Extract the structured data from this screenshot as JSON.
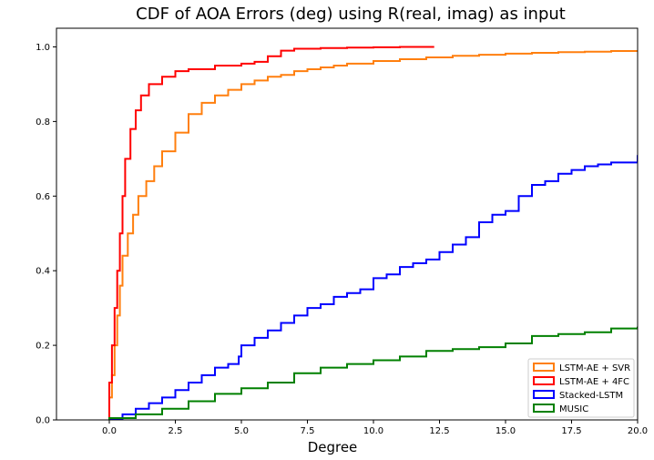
{
  "chart_data": {
    "type": "line",
    "title": "CDF of AOA Errors (deg) using R(real, imag) as input",
    "xlabel": "Degree",
    "ylabel": "",
    "xlim": [
      -2,
      20
    ],
    "ylim": [
      0,
      1.05
    ],
    "x_ticks": [
      0,
      2.5,
      5,
      7.5,
      10,
      12.5,
      15,
      17.5,
      20
    ],
    "x_tick_labels": [
      "0.0",
      "2.5",
      "5.0",
      "7.5",
      "10.0",
      "12.5",
      "15.0",
      "17.5",
      "20.0"
    ],
    "y_ticks": [
      0,
      0.2,
      0.4,
      0.6,
      0.8,
      1.0
    ],
    "y_tick_labels": [
      "0.0",
      "0.2",
      "0.4",
      "0.6",
      "0.8",
      "1.0"
    ],
    "grid": false,
    "legend_position": "lower-right",
    "series": [
      {
        "name": "LSTM-AE + SVR",
        "color": "#ff7f0e",
        "points": [
          [
            0,
            0
          ],
          [
            0,
            0.06
          ],
          [
            0.1,
            0.12
          ],
          [
            0.2,
            0.2
          ],
          [
            0.3,
            0.28
          ],
          [
            0.4,
            0.36
          ],
          [
            0.5,
            0.44
          ],
          [
            0.7,
            0.5
          ],
          [
            0.9,
            0.55
          ],
          [
            1.1,
            0.6
          ],
          [
            1.4,
            0.64
          ],
          [
            1.7,
            0.68
          ],
          [
            2.0,
            0.72
          ],
          [
            2.5,
            0.77
          ],
          [
            3.0,
            0.82
          ],
          [
            3.5,
            0.85
          ],
          [
            4.0,
            0.87
          ],
          [
            4.5,
            0.885
          ],
          [
            5.0,
            0.9
          ],
          [
            5.5,
            0.91
          ],
          [
            6.0,
            0.92
          ],
          [
            6.5,
            0.925
          ],
          [
            7.0,
            0.935
          ],
          [
            7.5,
            0.94
          ],
          [
            8.0,
            0.945
          ],
          [
            8.5,
            0.95
          ],
          [
            9.0,
            0.955
          ],
          [
            10.0,
            0.962
          ],
          [
            11.0,
            0.967
          ],
          [
            12.0,
            0.972
          ],
          [
            13.0,
            0.976
          ],
          [
            14.0,
            0.979
          ],
          [
            15.0,
            0.982
          ],
          [
            16.0,
            0.984
          ],
          [
            17.0,
            0.986
          ],
          [
            18.0,
            0.987
          ],
          [
            19.0,
            0.989
          ],
          [
            20.0,
            0.99
          ]
        ]
      },
      {
        "name": "LSTM-AE + 4FC",
        "color": "#ff0000",
        "points": [
          [
            0,
            0
          ],
          [
            0,
            0.1
          ],
          [
            0.1,
            0.2
          ],
          [
            0.2,
            0.3
          ],
          [
            0.3,
            0.4
          ],
          [
            0.4,
            0.5
          ],
          [
            0.5,
            0.6
          ],
          [
            0.6,
            0.7
          ],
          [
            0.8,
            0.78
          ],
          [
            1.0,
            0.83
          ],
          [
            1.2,
            0.87
          ],
          [
            1.5,
            0.9
          ],
          [
            2.0,
            0.92
          ],
          [
            2.5,
            0.935
          ],
          [
            3.0,
            0.94
          ],
          [
            4.0,
            0.95
          ],
          [
            5.0,
            0.955
          ],
          [
            5.5,
            0.96
          ],
          [
            6.0,
            0.975
          ],
          [
            6.5,
            0.99
          ],
          [
            7.0,
            0.995
          ],
          [
            8.0,
            0.997
          ],
          [
            9.0,
            0.998
          ],
          [
            10.0,
            0.999
          ],
          [
            11.0,
            1.0
          ],
          [
            12.3,
            1.0
          ]
        ]
      },
      {
        "name": "Stacked-LSTM",
        "color": "#0000ff",
        "points": [
          [
            0,
            0
          ],
          [
            0.5,
            0.015
          ],
          [
            1.0,
            0.03
          ],
          [
            1.5,
            0.045
          ],
          [
            2.0,
            0.06
          ],
          [
            2.5,
            0.08
          ],
          [
            3.0,
            0.1
          ],
          [
            3.5,
            0.12
          ],
          [
            4.0,
            0.14
          ],
          [
            4.5,
            0.15
          ],
          [
            4.9,
            0.17
          ],
          [
            5.0,
            0.2
          ],
          [
            5.5,
            0.22
          ],
          [
            6.0,
            0.24
          ],
          [
            6.5,
            0.26
          ],
          [
            7.0,
            0.28
          ],
          [
            7.5,
            0.3
          ],
          [
            8.0,
            0.31
          ],
          [
            8.5,
            0.33
          ],
          [
            9.0,
            0.34
          ],
          [
            9.5,
            0.35
          ],
          [
            10.0,
            0.38
          ],
          [
            10.5,
            0.39
          ],
          [
            11.0,
            0.41
          ],
          [
            11.5,
            0.42
          ],
          [
            12.0,
            0.43
          ],
          [
            12.5,
            0.45
          ],
          [
            13.0,
            0.47
          ],
          [
            13.5,
            0.49
          ],
          [
            14.0,
            0.53
          ],
          [
            14.5,
            0.55
          ],
          [
            15.0,
            0.56
          ],
          [
            15.5,
            0.6
          ],
          [
            16.0,
            0.63
          ],
          [
            16.5,
            0.64
          ],
          [
            17.0,
            0.66
          ],
          [
            17.5,
            0.67
          ],
          [
            18.0,
            0.68
          ],
          [
            18.5,
            0.685
          ],
          [
            19.0,
            0.69
          ],
          [
            20.0,
            0.71
          ]
        ]
      },
      {
        "name": "MUSIC",
        "color": "#008000",
        "points": [
          [
            0,
            0
          ],
          [
            0,
            0.005
          ],
          [
            1.0,
            0.015
          ],
          [
            2.0,
            0.03
          ],
          [
            3.0,
            0.05
          ],
          [
            4.0,
            0.07
          ],
          [
            5.0,
            0.085
          ],
          [
            6.0,
            0.1
          ],
          [
            7.0,
            0.125
          ],
          [
            8.0,
            0.14
          ],
          [
            9.0,
            0.15
          ],
          [
            10.0,
            0.16
          ],
          [
            11.0,
            0.17
          ],
          [
            12.0,
            0.185
          ],
          [
            13.0,
            0.19
          ],
          [
            14.0,
            0.195
          ],
          [
            15.0,
            0.205
          ],
          [
            16.0,
            0.225
          ],
          [
            17.0,
            0.23
          ],
          [
            18.0,
            0.235
          ],
          [
            19.0,
            0.245
          ],
          [
            20.0,
            0.25
          ]
        ]
      }
    ]
  }
}
